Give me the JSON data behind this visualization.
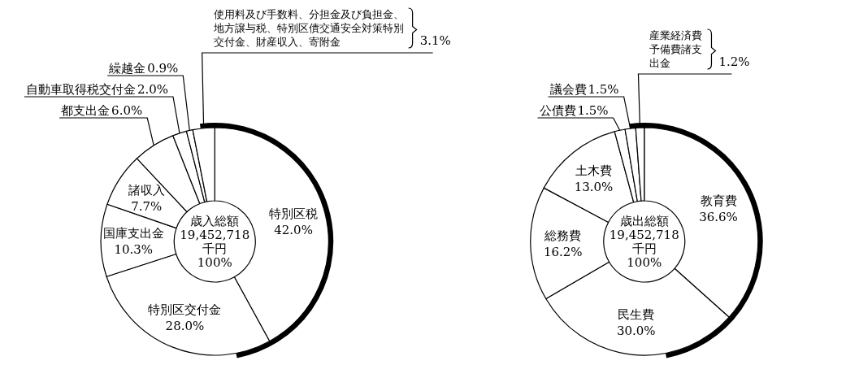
{
  "chart_data": [
    {
      "type": "donut",
      "categories": [
        "特別区税",
        "特別区交付金",
        "国庫支出金",
        "諸収入",
        "都支出金",
        "自動車取得税交付金",
        "繰越金",
        "使用料及び手数料、分担金及び負担金、地方譲与税、特別区債交通安全対策特別交付金、財産収入、寄附金"
      ],
      "values": [
        42.0,
        28.0,
        10.3,
        7.7,
        6.0,
        2.0,
        0.9,
        3.1
      ],
      "colors": [
        "#ffffff",
        "#ffffff",
        "#ffffff",
        "#ffffff",
        "#ffffff",
        "#ffffff",
        "#ffffff",
        "#ffffff"
      ],
      "value_labels": [
        "42.0%",
        "28.0%",
        "10.3%",
        "7.7%",
        "6.0%",
        "2.0%",
        "0.9%",
        "3.1%"
      ],
      "annotations": [
        "歳入総額",
        "19,452,718",
        "千円",
        "100%"
      ]
    },
    {
      "type": "donut",
      "categories": [
        "教育費",
        "民生費",
        "総務費",
        "土木費",
        "公債費",
        "議会費",
        "産業経済費予備費諸支出金"
      ],
      "values": [
        36.6,
        30.0,
        16.2,
        13.0,
        1.5,
        1.5,
        1.2
      ],
      "colors": [
        "#ffffff",
        "#ffffff",
        "#ffffff",
        "#ffffff",
        "#ffffff",
        "#ffffff",
        "#ffffff"
      ],
      "value_labels": [
        "36.6%",
        "30.0%",
        "16.2%",
        "13.0%",
        "1.5%",
        "1.5%",
        "1.2%"
      ],
      "annotations": [
        "歳出総額",
        "19,452,718",
        "千円",
        "100%"
      ]
    }
  ]
}
